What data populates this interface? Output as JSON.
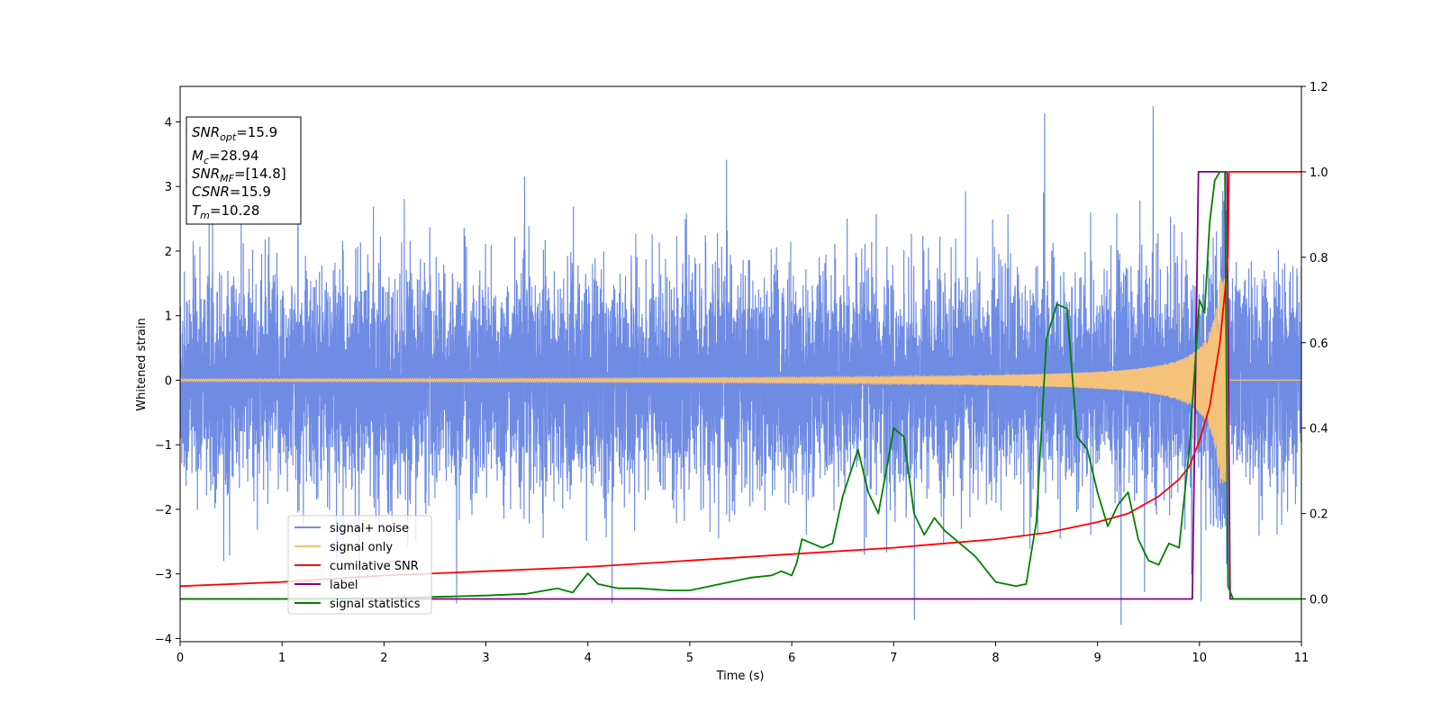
{
  "chart_data": {
    "type": "line",
    "xlabel": "Time (s)",
    "ylabel": "Whitened strain",
    "xlim": [
      0,
      11
    ],
    "ylim_left": [
      -4.05,
      4.55
    ],
    "ylim_right": [
      -0.1,
      1.2
    ],
    "x_ticks": [
      0,
      1,
      2,
      3,
      4,
      5,
      6,
      7,
      8,
      9,
      10,
      11
    ],
    "y_ticks_left": [
      4,
      3,
      2,
      1,
      0,
      -1,
      -2,
      -3,
      -4
    ],
    "y_ticks_left_labels": [
      "4",
      "3",
      "2",
      "1",
      "0",
      "−1",
      "−2",
      "−3",
      "−4"
    ],
    "y_ticks_right": [
      1.2,
      1.0,
      0.8,
      0.6,
      0.4,
      0.2,
      0.0
    ],
    "y_ticks_right_labels": [
      "1.2",
      "1.0",
      "0.8",
      "0.6",
      "0.4",
      "0.2",
      "0.0"
    ],
    "grid": false,
    "legend_position": "lower-left",
    "annotation": {
      "lines": [
        {
          "base": "SNR",
          "sub": "opt",
          "rest": "=15.9"
        },
        {
          "base": "M",
          "sub": "c",
          "rest": "=28.94"
        },
        {
          "base": "SNR",
          "sub": "MF",
          "rest": "=[14.8]"
        },
        {
          "base": "CSNR",
          "sub": "",
          "rest": "=15.9"
        },
        {
          "base": "T",
          "sub": "m",
          "rest": "=10.28"
        }
      ]
    },
    "series": [
      {
        "name": "signal+ noise",
        "axis": "left",
        "color": "#6f8ce4",
        "description_envelope": {
          "typical_range": [
            -1.6,
            1.4
          ],
          "peaks_max": 4.15,
          "peaks_min": -3.65
        }
      },
      {
        "name": "signal only",
        "axis": "left",
        "color": "#f5c27a",
        "chirp": {
          "start_amplitude": 0.02,
          "peak_time": 10.28,
          "peak_amplitude": 1.6
        }
      },
      {
        "name": "cumilative SNR",
        "axis": "right",
        "color": "#ff0000",
        "x": [
          0,
          1,
          2,
          3,
          4,
          5,
          6,
          7,
          7.5,
          8,
          8.5,
          9,
          9.3,
          9.6,
          9.8,
          9.9,
          10.0,
          10.1,
          10.2,
          10.25,
          10.28,
          10.29,
          11
        ],
        "y": [
          0.03,
          0.04,
          0.055,
          0.065,
          0.075,
          0.09,
          0.105,
          0.12,
          0.13,
          0.14,
          0.155,
          0.18,
          0.2,
          0.24,
          0.28,
          0.31,
          0.37,
          0.45,
          0.6,
          0.72,
          0.8,
          1.0,
          1.0
        ]
      },
      {
        "name": "label",
        "axis": "right",
        "color": "#800080",
        "x": [
          0,
          9.93,
          9.99,
          10.27,
          10.3,
          11
        ],
        "y": [
          0,
          0,
          1,
          1,
          0,
          0
        ]
      },
      {
        "name": "signal statistics",
        "axis": "right",
        "color": "#008000",
        "x": [
          0,
          1,
          2,
          2.5,
          3,
          3.4,
          3.7,
          3.85,
          4.0,
          4.1,
          4.3,
          4.5,
          4.8,
          5.0,
          5.3,
          5.6,
          5.8,
          5.9,
          6.0,
          6.05,
          6.1,
          6.2,
          6.3,
          6.4,
          6.5,
          6.65,
          6.75,
          6.85,
          6.95,
          7.0,
          7.1,
          7.2,
          7.3,
          7.4,
          7.5,
          7.6,
          7.7,
          7.8,
          8.0,
          8.2,
          8.3,
          8.4,
          8.5,
          8.6,
          8.7,
          8.8,
          8.9,
          9.0,
          9.1,
          9.2,
          9.3,
          9.4,
          9.5,
          9.6,
          9.7,
          9.8,
          9.9,
          10.0,
          10.05,
          10.1,
          10.15,
          10.2,
          10.25,
          10.28,
          10.33,
          10.4,
          11
        ],
        "y": [
          0.0,
          0.0,
          0.002,
          0.005,
          0.008,
          0.012,
          0.025,
          0.015,
          0.06,
          0.035,
          0.025,
          0.025,
          0.02,
          0.02,
          0.035,
          0.05,
          0.055,
          0.065,
          0.055,
          0.085,
          0.14,
          0.13,
          0.12,
          0.13,
          0.24,
          0.35,
          0.25,
          0.2,
          0.33,
          0.4,
          0.38,
          0.2,
          0.15,
          0.19,
          0.16,
          0.14,
          0.12,
          0.1,
          0.04,
          0.03,
          0.035,
          0.18,
          0.61,
          0.69,
          0.68,
          0.38,
          0.35,
          0.25,
          0.17,
          0.22,
          0.25,
          0.14,
          0.09,
          0.08,
          0.13,
          0.12,
          0.35,
          0.7,
          0.67,
          0.88,
          0.98,
          1.0,
          1.0,
          0.03,
          0.0,
          0.0,
          0.0
        ]
      }
    ]
  }
}
